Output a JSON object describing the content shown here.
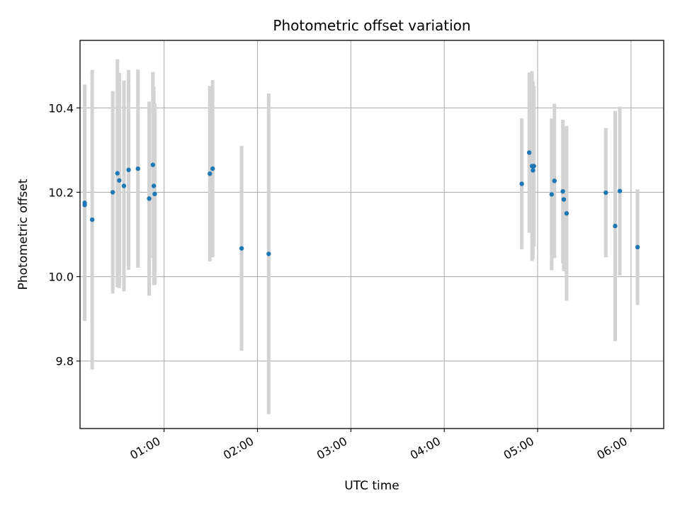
{
  "chart_data": {
    "type": "scatter",
    "title": "Photometric offset variation",
    "xlabel": "UTC time",
    "ylabel": "Photometric offset",
    "x_axis": {
      "kind": "time",
      "unit": "hours UTC",
      "range": [
        0.1,
        6.35
      ],
      "ticks": [
        {
          "value": 1.0,
          "label": "01:00"
        },
        {
          "value": 2.0,
          "label": "02:00"
        },
        {
          "value": 3.0,
          "label": "03:00"
        },
        {
          "value": 4.0,
          "label": "04:00"
        },
        {
          "value": 5.0,
          "label": "05:00"
        },
        {
          "value": 6.0,
          "label": "06:00"
        }
      ]
    },
    "y_axis": {
      "range": [
        9.64,
        10.56
      ],
      "ticks": [
        {
          "value": 9.8,
          "label": "9.8"
        },
        {
          "value": 10.0,
          "label": "10.0"
        },
        {
          "value": 10.2,
          "label": "10.2"
        },
        {
          "value": 10.4,
          "label": "10.4"
        }
      ]
    },
    "grid": true,
    "legend": "none",
    "colors": {
      "point": "#1f77b4",
      "errorbar": "#d3d3d3",
      "grid": "#b0b0b0"
    },
    "points": [
      {
        "x": 0.15,
        "y": 10.175,
        "yerr": 0.28
      },
      {
        "x": 0.15,
        "y": 10.17,
        "yerr": 0.27
      },
      {
        "x": 0.23,
        "y": 10.135,
        "yerr": 0.355
      },
      {
        "x": 0.45,
        "y": 10.2,
        "yerr": 0.24
      },
      {
        "x": 0.5,
        "y": 10.245,
        "yerr": 0.27
      },
      {
        "x": 0.52,
        "y": 10.228,
        "yerr": 0.255
      },
      {
        "x": 0.57,
        "y": 10.215,
        "yerr": 0.25
      },
      {
        "x": 0.62,
        "y": 10.253,
        "yerr": 0.237
      },
      {
        "x": 0.72,
        "y": 10.256,
        "yerr": 0.235
      },
      {
        "x": 0.84,
        "y": 10.185,
        "yerr": 0.23
      },
      {
        "x": 0.88,
        "y": 10.265,
        "yerr": 0.22
      },
      {
        "x": 0.89,
        "y": 10.215,
        "yerr": 0.235
      },
      {
        "x": 0.9,
        "y": 10.196,
        "yerr": 0.215
      },
      {
        "x": 1.49,
        "y": 10.244,
        "yerr": 0.208
      },
      {
        "x": 1.52,
        "y": 10.256,
        "yerr": 0.21
      },
      {
        "x": 1.83,
        "y": 10.067,
        "yerr": 0.243
      },
      {
        "x": 2.12,
        "y": 10.054,
        "yerr": 0.38
      },
      {
        "x": 4.83,
        "y": 10.22,
        "yerr": 0.155
      },
      {
        "x": 4.91,
        "y": 10.294,
        "yerr": 0.19
      },
      {
        "x": 4.94,
        "y": 10.262,
        "yerr": 0.225
      },
      {
        "x": 4.95,
        "y": 10.252,
        "yerr": 0.21
      },
      {
        "x": 4.96,
        "y": 10.262,
        "yerr": 0.19
      },
      {
        "x": 5.15,
        "y": 10.195,
        "yerr": 0.18
      },
      {
        "x": 5.18,
        "y": 10.227,
        "yerr": 0.183
      },
      {
        "x": 5.27,
        "y": 10.202,
        "yerr": 0.17
      },
      {
        "x": 5.28,
        "y": 10.183,
        "yerr": 0.17
      },
      {
        "x": 5.31,
        "y": 10.15,
        "yerr": 0.207
      },
      {
        "x": 5.73,
        "y": 10.199,
        "yerr": 0.153
      },
      {
        "x": 5.83,
        "y": 10.12,
        "yerr": 0.273
      },
      {
        "x": 5.88,
        "y": 10.203,
        "yerr": 0.2
      },
      {
        "x": 6.07,
        "y": 10.07,
        "yerr": 0.137
      }
    ]
  }
}
